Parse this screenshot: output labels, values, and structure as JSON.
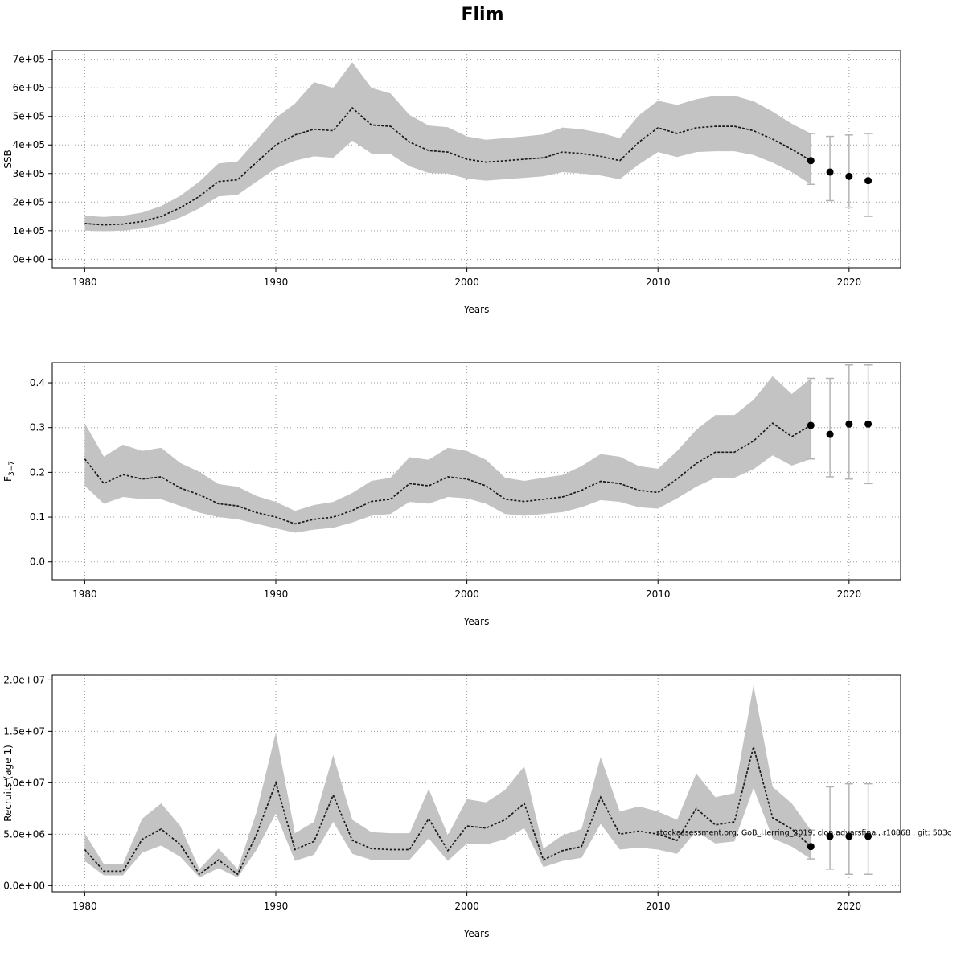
{
  "title": "Flim",
  "chart_data": [
    {
      "type": "line",
      "name": "ssb",
      "xlabel": "Years",
      "ylabel": "SSB",
      "ylabel_sub": "",
      "xlim": [
        1978.3,
        2022.7
      ],
      "ylim": [
        -30000,
        730000
      ],
      "xticks": [
        1980,
        1990,
        2000,
        2010,
        2020
      ],
      "xtick_labels": [
        "1980",
        "1990",
        "2000",
        "2010",
        "2020"
      ],
      "ytick_values": [
        0,
        100000,
        200000,
        300000,
        400000,
        500000,
        600000,
        700000
      ],
      "ytick_labels": [
        "0e+00",
        "1e+05",
        "2e+05",
        "3e+05",
        "4e+05",
        "5e+05",
        "6e+05",
        "7e+05"
      ],
      "years": [
        1980,
        1981,
        1982,
        1983,
        1984,
        1985,
        1986,
        1987,
        1988,
        1989,
        1990,
        1991,
        1992,
        1993,
        1994,
        1995,
        1996,
        1997,
        1998,
        1999,
        2000,
        2001,
        2002,
        2003,
        2004,
        2005,
        2006,
        2007,
        2008,
        2009,
        2010,
        2011,
        2012,
        2013,
        2014,
        2015,
        2016,
        2017,
        2018
      ],
      "estimate": [
        125000,
        120000,
        123000,
        132000,
        150000,
        180000,
        220000,
        272000,
        278000,
        340000,
        400000,
        435000,
        455000,
        450000,
        530000,
        470000,
        465000,
        410000,
        380000,
        375000,
        350000,
        340000,
        345000,
        350000,
        355000,
        375000,
        370000,
        360000,
        345000,
        410000,
        460000,
        440000,
        460000,
        465000,
        465000,
        450000,
        420000,
        385000,
        345000
      ],
      "lower": [
        100000,
        98000,
        100000,
        107000,
        122000,
        146000,
        178000,
        220000,
        225000,
        272000,
        318000,
        345000,
        360000,
        355000,
        415000,
        370000,
        368000,
        325000,
        302000,
        300000,
        282000,
        275000,
        280000,
        285000,
        290000,
        305000,
        300000,
        293000,
        280000,
        332000,
        375000,
        358000,
        375000,
        378000,
        378000,
        365000,
        338000,
        305000,
        262000
      ],
      "upper": [
        152000,
        148000,
        152000,
        163000,
        186000,
        222000,
        272000,
        335000,
        342000,
        418000,
        495000,
        545000,
        620000,
        600000,
        690000,
        600000,
        580000,
        505000,
        468000,
        462000,
        430000,
        418000,
        424000,
        430000,
        437000,
        461000,
        455000,
        442000,
        424000,
        504000,
        555000,
        540000,
        560000,
        572000,
        572000,
        553000,
        517000,
        474000,
        440000
      ],
      "forecast": {
        "years": [
          2018,
          2019,
          2020,
          2021
        ],
        "values": [
          345000,
          305000,
          290000,
          275000
        ],
        "lower": [
          262000,
          205000,
          182000,
          150000
        ],
        "upper": [
          440000,
          430000,
          435000,
          440000
        ]
      },
      "colors": {
        "band": "#c3c3c3",
        "line": "#1a1a1a",
        "error": "#b3b3b3",
        "point": "#000000"
      }
    },
    {
      "type": "line",
      "name": "fishing-mortality",
      "xlabel": "Years",
      "ylabel": "F",
      "ylabel_sub": "3−7",
      "xlim": [
        1978.3,
        2022.7
      ],
      "ylim": [
        -0.04,
        0.445
      ],
      "xticks": [
        1980,
        1990,
        2000,
        2010,
        2020
      ],
      "xtick_labels": [
        "1980",
        "1990",
        "2000",
        "2010",
        "2020"
      ],
      "ytick_values": [
        0.0,
        0.1,
        0.2,
        0.3,
        0.4
      ],
      "ytick_labels": [
        "0.0",
        "0.1",
        "0.2",
        "0.3",
        "0.4"
      ],
      "years": [
        1980,
        1981,
        1982,
        1983,
        1984,
        1985,
        1986,
        1987,
        1988,
        1989,
        1990,
        1991,
        1992,
        1993,
        1994,
        1995,
        1996,
        1997,
        1998,
        1999,
        2000,
        2001,
        2002,
        2003,
        2004,
        2005,
        2006,
        2007,
        2008,
        2009,
        2010,
        2011,
        2012,
        2013,
        2014,
        2015,
        2016,
        2017,
        2018
      ],
      "estimate": [
        0.23,
        0.175,
        0.195,
        0.185,
        0.19,
        0.165,
        0.15,
        0.13,
        0.125,
        0.11,
        0.1,
        0.085,
        0.095,
        0.1,
        0.115,
        0.135,
        0.14,
        0.175,
        0.17,
        0.19,
        0.185,
        0.17,
        0.14,
        0.135,
        0.14,
        0.145,
        0.16,
        0.18,
        0.175,
        0.16,
        0.155,
        0.185,
        0.22,
        0.245,
        0.245,
        0.27,
        0.31,
        0.28,
        0.305
      ],
      "lower": [
        0.17,
        0.13,
        0.145,
        0.14,
        0.14,
        0.125,
        0.11,
        0.1,
        0.095,
        0.085,
        0.075,
        0.065,
        0.072,
        0.076,
        0.088,
        0.103,
        0.107,
        0.134,
        0.13,
        0.145,
        0.142,
        0.13,
        0.107,
        0.103,
        0.107,
        0.111,
        0.122,
        0.138,
        0.134,
        0.122,
        0.119,
        0.142,
        0.168,
        0.188,
        0.188,
        0.207,
        0.238,
        0.215,
        0.23
      ],
      "upper": [
        0.31,
        0.235,
        0.262,
        0.248,
        0.255,
        0.221,
        0.201,
        0.174,
        0.168,
        0.147,
        0.134,
        0.114,
        0.127,
        0.134,
        0.154,
        0.181,
        0.188,
        0.234,
        0.228,
        0.255,
        0.248,
        0.228,
        0.188,
        0.181,
        0.188,
        0.194,
        0.214,
        0.241,
        0.235,
        0.214,
        0.208,
        0.248,
        0.295,
        0.328,
        0.328,
        0.362,
        0.415,
        0.375,
        0.41
      ],
      "forecast": {
        "years": [
          2018,
          2019,
          2020,
          2021
        ],
        "values": [
          0.305,
          0.285,
          0.308,
          0.308
        ],
        "lower": [
          0.23,
          0.19,
          0.185,
          0.175
        ],
        "upper": [
          0.41,
          0.41,
          0.44,
          0.44
        ]
      },
      "colors": {
        "band": "#c3c3c3",
        "line": "#1a1a1a",
        "error": "#b3b3b3",
        "point": "#000000"
      }
    },
    {
      "type": "line",
      "name": "recruits",
      "xlabel": "Years",
      "ylabel": "Recruits (age 1)",
      "ylabel_sub": "",
      "xlim": [
        1978.3,
        2022.7
      ],
      "ylim": [
        -600000,
        20500000
      ],
      "xticks": [
        1980,
        1990,
        2000,
        2010,
        2020
      ],
      "xtick_labels": [
        "1980",
        "1990",
        "2000",
        "2010",
        "2020"
      ],
      "ytick_values": [
        0,
        5000000,
        10000000,
        15000000,
        20000000
      ],
      "ytick_labels": [
        "0.0e+00",
        "5.0e+06",
        "1.0e+07",
        "1.5e+07",
        "2.0e+07"
      ],
      "years": [
        1980,
        1981,
        1982,
        1983,
        1984,
        1985,
        1986,
        1987,
        1988,
        1989,
        1990,
        1991,
        1992,
        1993,
        1994,
        1995,
        1996,
        1997,
        1998,
        1999,
        2000,
        2001,
        2002,
        2003,
        2004,
        2005,
        2006,
        2007,
        2008,
        2009,
        2010,
        2011,
        2012,
        2013,
        2014,
        2015,
        2016,
        2017,
        2018
      ],
      "estimate": [
        3500000,
        1400000,
        1400000,
        4500000,
        5500000,
        4000000,
        1100000,
        2500000,
        1100000,
        5000000,
        10000000,
        3500000,
        4300000,
        8800000,
        4400000,
        3600000,
        3500000,
        3500000,
        6500000,
        3400000,
        5800000,
        5600000,
        6400000,
        8000000,
        2500000,
        3400000,
        3800000,
        8600000,
        5000000,
        5300000,
        5000000,
        4400000,
        7500000,
        5900000,
        6200000,
        13500000,
        6600000,
        5500000,
        3800000
      ],
      "lower": [
        2400000,
        1000000,
        1000000,
        3200000,
        3900000,
        2800000,
        800000,
        1700000,
        800000,
        3500000,
        7000000,
        2400000,
        3000000,
        6200000,
        3100000,
        2500000,
        2500000,
        2500000,
        4600000,
        2400000,
        4100000,
        4000000,
        4500000,
        5600000,
        1800000,
        2400000,
        2700000,
        6000000,
        3500000,
        3700000,
        3500000,
        3100000,
        5300000,
        4100000,
        4300000,
        9500000,
        4600000,
        3800000,
        2600000
      ],
      "upper": [
        5100000,
        2100000,
        2100000,
        6500000,
        8000000,
        5800000,
        1600000,
        3600000,
        1600000,
        7200000,
        14900000,
        5100000,
        6200000,
        12700000,
        6400000,
        5200000,
        5100000,
        5100000,
        9400000,
        4900000,
        8400000,
        8100000,
        9300000,
        11600000,
        3600000,
        4900000,
        5500000,
        12500000,
        7200000,
        7700000,
        7200000,
        6400000,
        10900000,
        8600000,
        9000000,
        19500000,
        9600000,
        8000000,
        5400000
      ],
      "forecast": {
        "years": [
          2018,
          2019,
          2020,
          2021
        ],
        "values": [
          3800000,
          4800000,
          4800000,
          4800000
        ],
        "lower": [
          2600000,
          1600000,
          1100000,
          1100000
        ],
        "upper": [
          5400000,
          9600000,
          9900000,
          9900000
        ]
      },
      "annotation": {
        "text": "stockassessment.org, GoB_Herring_2019, clon advarsfinal, r10868 , git: 503c",
        "x": 2009.9,
        "y": 4900000
      },
      "colors": {
        "band": "#c3c3c3",
        "line": "#1a1a1a",
        "error": "#b3b3b3",
        "point": "#000000"
      }
    }
  ]
}
